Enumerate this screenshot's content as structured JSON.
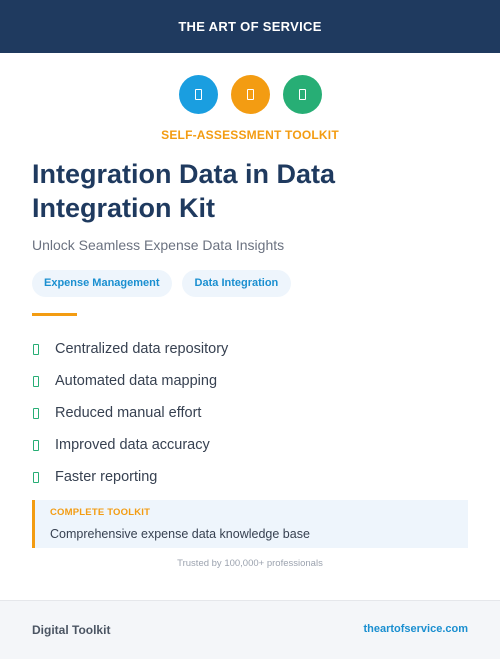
{
  "header": {
    "brand": "THE ART OF SERVICE"
  },
  "icons": [
    {
      "name": "document-icon",
      "color": "#1a9ee0"
    },
    {
      "name": "document-icon",
      "color": "#f39c12"
    },
    {
      "name": "document-icon",
      "color": "#27ae75"
    }
  ],
  "hero": {
    "kicker": "SELF-ASSESSMENT TOOLKIT",
    "title": "Integration Data in Data Integration Kit",
    "subtitle": "Unlock Seamless Expense Data Insights"
  },
  "tags": [
    "Expense Management",
    "Data Integration"
  ],
  "features": [
    "Centralized data repository",
    "Automated data mapping",
    "Reduced manual effort",
    "Improved data accuracy",
    "Faster reporting"
  ],
  "toolkit": {
    "label": "COMPLETE TOOLKIT",
    "description": "Comprehensive expense data knowledge base"
  },
  "trust_note": "Trusted by 100,000+ professionals",
  "footer": {
    "left": "Digital Toolkit",
    "right": "theartofservice.com"
  },
  "colors": {
    "navy": "#1f3a5f",
    "orange": "#f39c12",
    "blue": "#1a9ee0",
    "green": "#27ae75"
  }
}
